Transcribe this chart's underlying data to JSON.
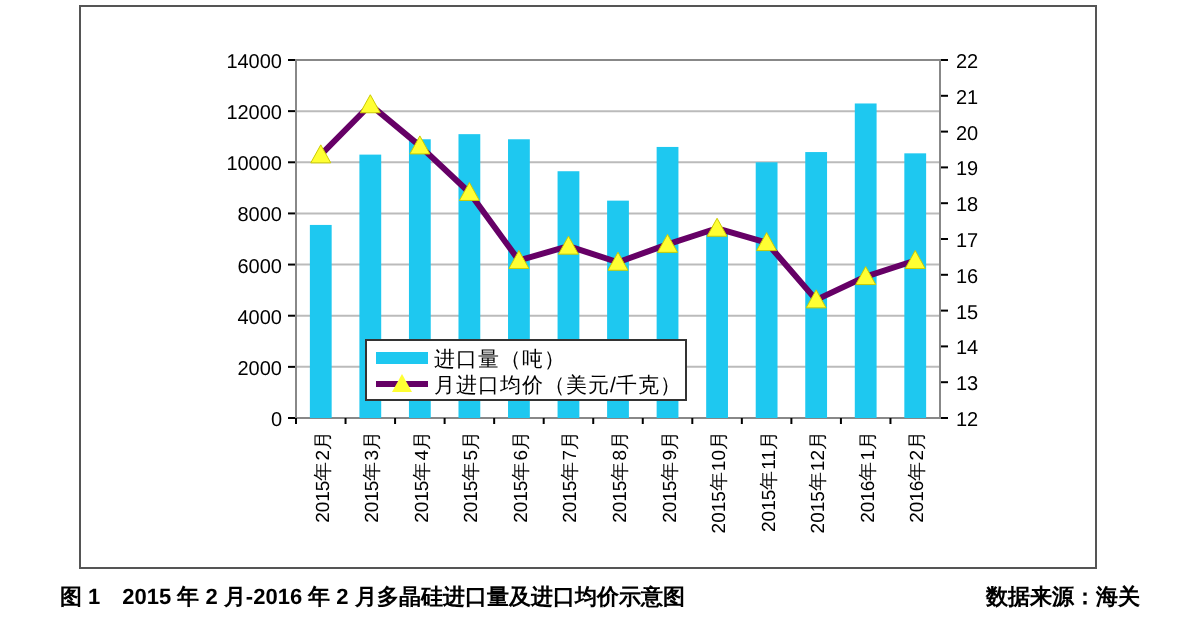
{
  "chart_data": {
    "type": "bar",
    "title": "图 1　2015 年 2 月-2016 年 2 月多晶硅进口量及进口均价示意图",
    "annotations": [
      "数据来源：海关"
    ],
    "categories": [
      "2015年2月",
      "2015年3月",
      "2015年4月",
      "2015年5月",
      "2015年6月",
      "2015年7月",
      "2015年8月",
      "2015年9月",
      "2015年10月",
      "2015年11月",
      "2015年12月",
      "2016年1月",
      "2016年2月"
    ],
    "series": [
      {
        "name": "进口量（吨）",
        "color": "#1ec8f0",
        "values": [
          7550,
          10300,
          10900,
          11100,
          10900,
          9650,
          8500,
          10600,
          7300,
          10000,
          10400,
          12300,
          10350
        ]
      },
      {
        "name": "月进口均价（美元/千克）",
        "type": "line",
        "axis": "y2",
        "color": "#660066",
        "marker": "triangle",
        "values": [
          19.35,
          20.75,
          19.6,
          18.3,
          16.4,
          16.8,
          16.35,
          16.85,
          17.3,
          16.9,
          15.3,
          15.95,
          16.4
        ]
      }
    ],
    "ylim": [
      0,
      14000
    ],
    "yticks": [
      0,
      2000,
      4000,
      6000,
      8000,
      10000,
      12000,
      14000
    ],
    "y2lim": [
      12,
      22
    ],
    "y2ticks": [
      12,
      13,
      14,
      15,
      16,
      17,
      18,
      19,
      20,
      21,
      22
    ],
    "grid": "y",
    "legend": "bottom left"
  }
}
